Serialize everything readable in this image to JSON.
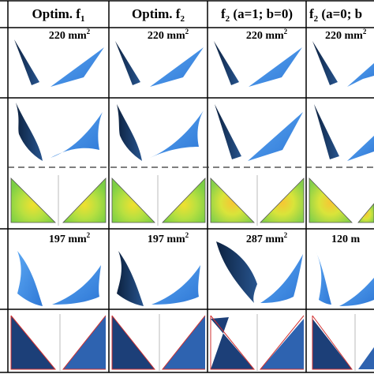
{
  "columns": [
    {
      "label": "Optim. f",
      "sub": "1"
    },
    {
      "label": "Optim. f",
      "sub": "2"
    },
    {
      "label": "f",
      "sub": "2",
      "suffix": " (a=1; b=0)"
    },
    {
      "label": "f",
      "sub": "2",
      "suffix": " (a=0; b"
    }
  ],
  "row1_areas": [
    {
      "value": "220 mm",
      "exp": "2"
    },
    {
      "value": "220 mm",
      "exp": "2"
    },
    {
      "value": "220 mm",
      "exp": "2"
    },
    {
      "value": "220 mm",
      "exp": "2"
    }
  ],
  "row4_areas": [
    {
      "value": "197 mm",
      "exp": "2"
    },
    {
      "value": "197 mm",
      "exp": "2"
    },
    {
      "value": "287 mm",
      "exp": "2"
    },
    {
      "value": "120 m",
      "exp": ""
    }
  ],
  "colors": {
    "leaflet_blue": "#3a86e0",
    "leaflet_dark": "#102a4e",
    "stress_green": "#b8e040",
    "stress_yellow": "#f0e030",
    "outline_red": "#d23232",
    "dash_line": "#333333"
  }
}
